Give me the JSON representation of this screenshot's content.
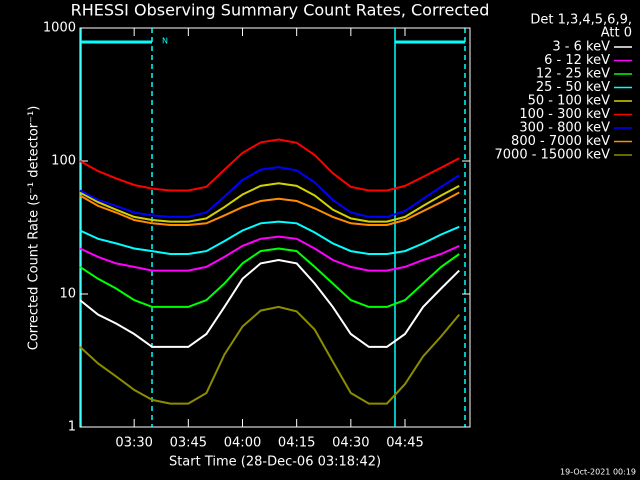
{
  "chart_data": {
    "type": "line",
    "title": "RHESSI Observing Summary Count Rates, Corrected",
    "x_label": "Start Time (28-Dec-06 03:18:42)",
    "y_label": "Corrected Count Rate (s⁻¹ detector⁻¹)",
    "legend_title": [
      "Det 1,3,4,5,6,9,",
      "Att 0"
    ],
    "footer": "19-Oct-2021 00:19",
    "annotations": [
      {
        "label": "N"
      }
    ],
    "log_y": true,
    "xlim": [
      "03:15",
      "05:03"
    ],
    "xticks": [
      "03:30",
      "03:45",
      "04:00",
      "04:15",
      "04:30",
      "04:45"
    ],
    "ylim": [
      1,
      1000
    ],
    "yticks": [
      1,
      10,
      100,
      1000
    ],
    "x": [
      "03:15",
      "03:20",
      "03:25",
      "03:30",
      "03:35",
      "03:40",
      "03:45",
      "03:50",
      "03:55",
      "04:00",
      "04:05",
      "04:10",
      "04:15",
      "04:20",
      "04:25",
      "04:30",
      "04:35",
      "04:40",
      "04:45",
      "04:50",
      "04:55",
      "05:00"
    ],
    "series": [
      {
        "name": "3 - 6 keV",
        "color": "#ffffff",
        "values": [
          9,
          7,
          6,
          5,
          4,
          4,
          4,
          5,
          8,
          13,
          17,
          18,
          17,
          12,
          8,
          5,
          4,
          4,
          5,
          8,
          11,
          15
        ]
      },
      {
        "name": "6 - 12 keV",
        "color": "#ff00ff",
        "values": [
          22,
          19,
          17,
          16,
          15,
          15,
          15,
          16,
          19,
          23,
          26,
          27,
          26,
          22,
          18,
          16,
          15,
          15,
          16,
          18,
          20,
          23
        ]
      },
      {
        "name": "12 - 25 keV",
        "color": "#00ff00",
        "values": [
          16,
          13,
          11,
          9,
          8,
          8,
          8,
          9,
          12,
          17,
          21,
          22,
          21,
          16,
          12,
          9,
          8,
          8,
          9,
          12,
          16,
          20
        ]
      },
      {
        "name": "25 - 50 keV",
        "color": "#00ffff",
        "values": [
          30,
          26,
          24,
          22,
          21,
          20,
          20,
          21,
          25,
          30,
          34,
          35,
          34,
          29,
          24,
          21,
          20,
          20,
          21,
          24,
          28,
          32
        ]
      },
      {
        "name": "50 - 100 keV",
        "color": "#d2d200",
        "values": [
          58,
          49,
          43,
          38,
          36,
          35,
          35,
          37,
          45,
          56,
          65,
          68,
          65,
          55,
          43,
          37,
          35,
          35,
          38,
          46,
          55,
          65
        ]
      },
      {
        "name": "100 - 300 keV",
        "color": "#ff0000",
        "values": [
          100,
          84,
          74,
          66,
          62,
          60,
          60,
          64,
          86,
          115,
          138,
          145,
          137,
          111,
          81,
          64,
          60,
          60,
          65,
          76,
          89,
          105
        ]
      },
      {
        "name": "300 - 800 keV",
        "color": "#0000ff",
        "values": [
          60,
          51,
          46,
          41,
          39,
          38,
          38,
          41,
          54,
          72,
          86,
          90,
          85,
          69,
          51,
          41,
          38,
          38,
          42,
          52,
          64,
          78
        ]
      },
      {
        "name": "800 - 7000 keV",
        "color": "#ff8c00",
        "values": [
          55,
          46,
          41,
          36,
          34,
          33,
          33,
          34,
          39,
          45,
          50,
          52,
          50,
          44,
          38,
          34,
          33,
          33,
          36,
          42,
          49,
          58
        ]
      },
      {
        "name": "7000 - 15000 keV",
        "color": "#8c8c00",
        "values": [
          4,
          3,
          2.4,
          1.9,
          1.6,
          1.5,
          1.5,
          1.8,
          3.5,
          5.7,
          7.5,
          8,
          7.4,
          5.4,
          3.1,
          1.8,
          1.5,
          1.5,
          2.1,
          3.4,
          4.8,
          7
        ]
      }
    ]
  }
}
